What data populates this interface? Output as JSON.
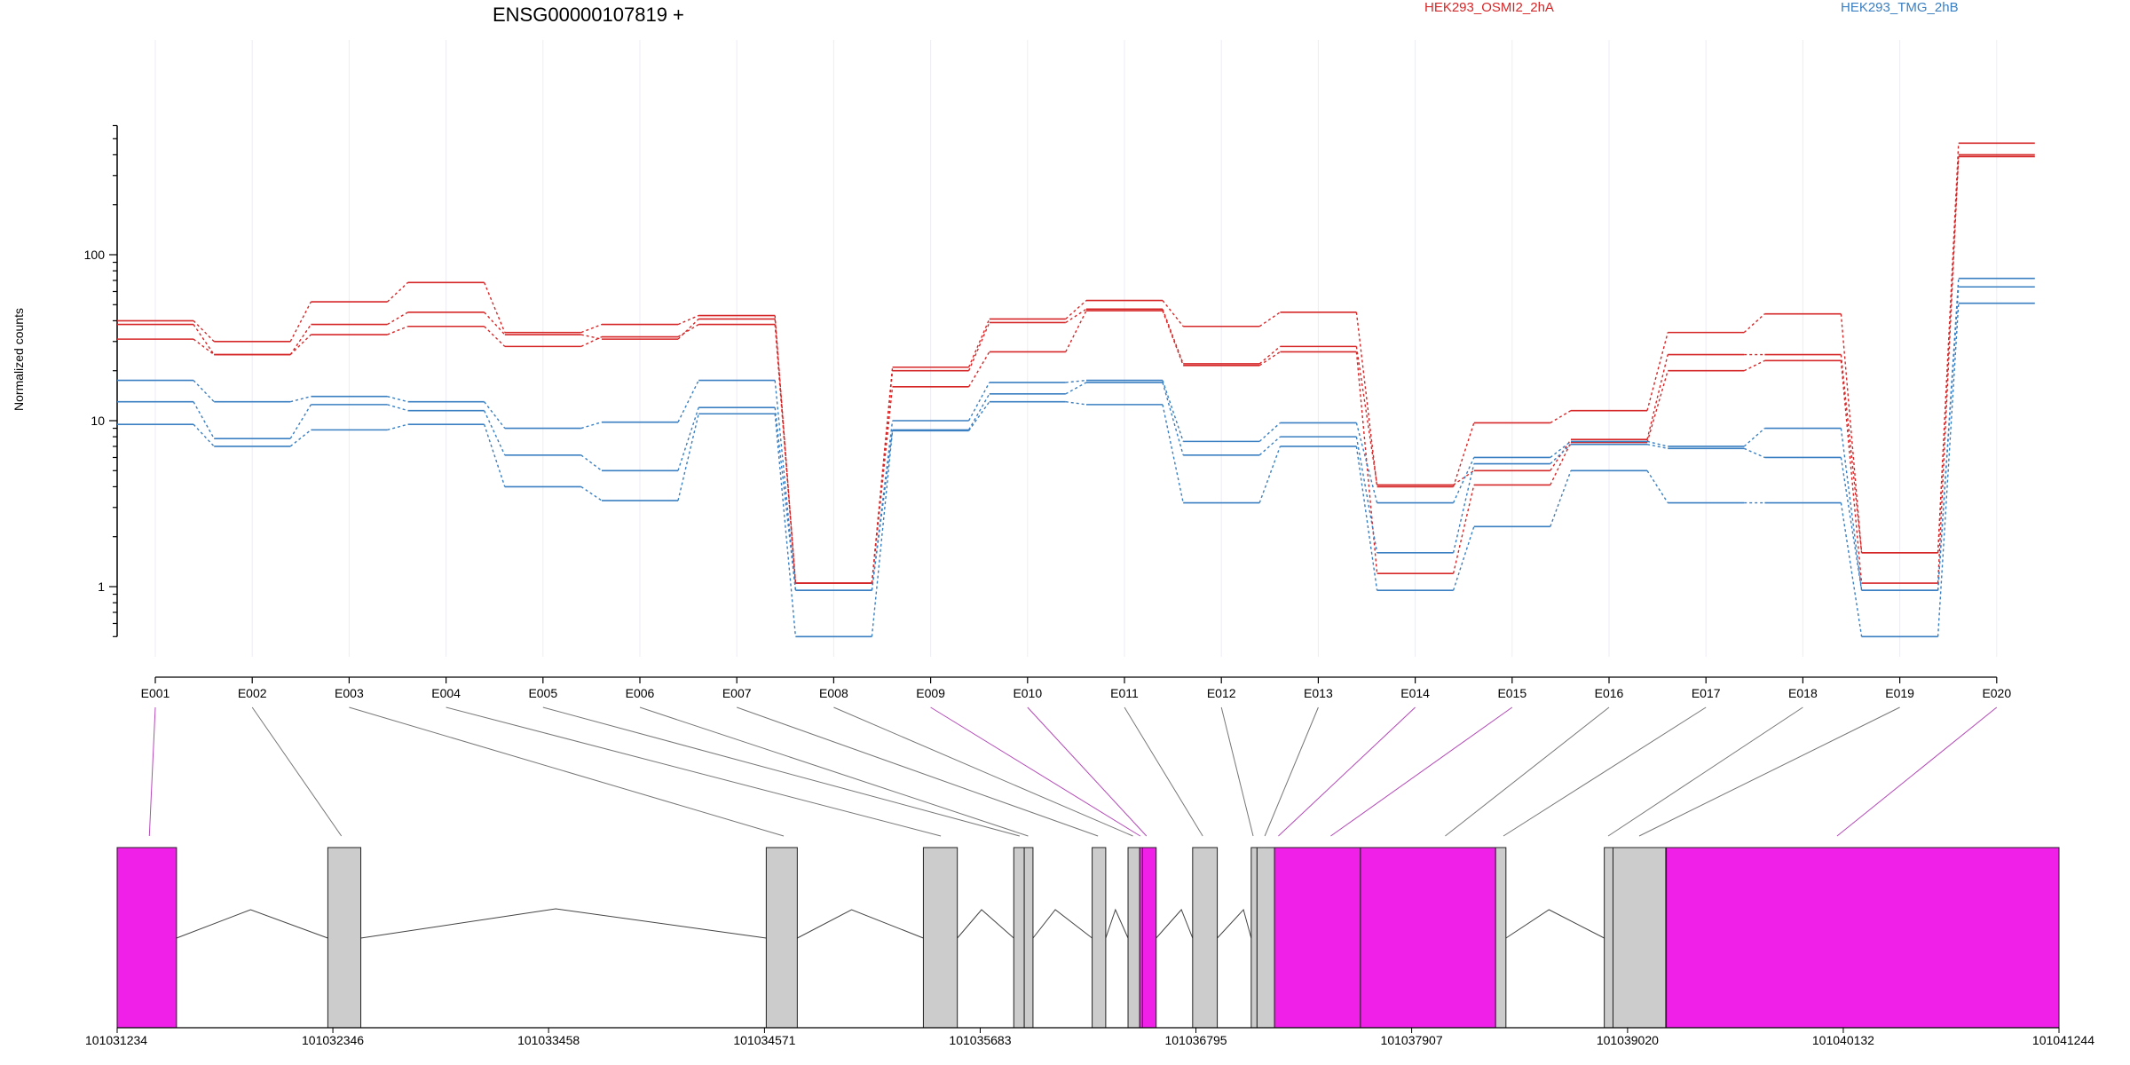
{
  "chart_data": {
    "type": "line",
    "title": "ENSG00000107819 +",
    "ylabel": "Normalized counts",
    "xlabel": "",
    "yscale": "log",
    "ylim": [
      0.5,
      600
    ],
    "grid": "vertical, light",
    "legend_placement": "top-right",
    "yticks": [
      "1",
      "10",
      "100"
    ],
    "categories": [
      "E001",
      "E002",
      "E003",
      "E004",
      "E005",
      "E006",
      "E007",
      "E008",
      "E009",
      "E010",
      "E011",
      "E012",
      "E013",
      "E014",
      "E015",
      "E016",
      "E017",
      "E018",
      "E019",
      "E020"
    ],
    "colors": {
      "HEK293_OSMI2_2hA": "#d62728",
      "HEK293_TMG_2hB": "#3a7fc1",
      "highlight": "#f020e8",
      "exon_gray": "#cccccc"
    },
    "legend": [
      "HEK293_OSMI2_2hA",
      "HEK293_TMG_2hB"
    ],
    "series": [
      {
        "name": "HEK293_OSMI2_2hA",
        "group": "HEK293_OSMI2_2hA",
        "values": [
          40,
          30,
          52,
          68,
          34,
          38,
          43,
          1.05,
          21,
          41,
          53,
          37,
          45,
          4,
          9.7,
          11.5,
          34,
          44,
          1.6,
          470
        ]
      },
      {
        "group": "HEK293_OSMI2_2hA",
        "values": [
          38,
          25,
          38,
          45,
          33,
          31,
          41,
          1.05,
          20,
          39,
          47,
          22,
          28,
          4.1,
          5,
          7.7,
          25,
          25,
          1.6,
          400
        ]
      },
      {
        "group": "HEK293_OSMI2_2hA",
        "values": [
          31,
          25,
          33,
          37,
          28,
          32,
          38,
          1.05,
          16,
          26,
          46,
          21.5,
          26,
          1.2,
          4.1,
          7.4,
          20,
          23,
          1.05,
          390
        ]
      },
      {
        "group": "HEK293_TMG_2hB",
        "values": [
          17.5,
          13,
          14,
          13,
          9,
          9.8,
          17.5,
          0.95,
          10,
          17,
          17.5,
          7.5,
          9.7,
          3.2,
          6,
          7.5,
          7,
          9,
          0.95,
          72
        ]
      },
      {
        "group": "HEK293_TMG_2hB",
        "values": [
          13,
          7.8,
          12.5,
          11.5,
          6.2,
          5,
          12,
          0.95,
          8.8,
          14.5,
          17,
          6.2,
          8,
          1.6,
          5.5,
          7.2,
          6.8,
          6,
          0.95,
          64
        ]
      },
      {
        "group": "HEK293_TMG_2hB",
        "values": [
          9.5,
          7,
          8.8,
          9.5,
          4,
          3.3,
          11,
          0.5,
          8.7,
          13,
          12.5,
          3.2,
          7,
          0.95,
          2.3,
          5,
          3.2,
          3.2,
          0.5,
          51
        ]
      }
    ],
    "genomic_axis": {
      "tick_labels": [
        "101031234",
        "101032346",
        "101033458",
        "101034571",
        "101035683",
        "101036795",
        "101037907",
        "101039020",
        "101040132",
        "101041244"
      ],
      "exons": [
        {
          "id": "E001",
          "start": 101031234,
          "end": 101031540,
          "highlight": true
        },
        {
          "id": "E002",
          "start": 101032320,
          "end": 101032490,
          "highlight": false
        },
        {
          "id": "E003",
          "start": 101034580,
          "end": 101034740,
          "highlight": false
        },
        {
          "id": "E004",
          "start": 101035390,
          "end": 101035565,
          "highlight": false
        },
        {
          "id": "E005",
          "start": 101035856,
          "end": 101035910,
          "highlight": false
        },
        {
          "id": "E006",
          "start": 101035910,
          "end": 101035955,
          "highlight": false
        },
        {
          "id": "E007",
          "start": 101036260,
          "end": 101036330,
          "highlight": false
        },
        {
          "id": "E008",
          "start": 101036445,
          "end": 101036505,
          "highlight": false
        },
        {
          "id": "E009",
          "start": 101036505,
          "end": 101036520,
          "highlight": true
        },
        {
          "id": "E010",
          "start": 101036520,
          "end": 101036590,
          "highlight": true
        },
        {
          "id": "E011",
          "start": 101036778,
          "end": 101036905,
          "highlight": false
        },
        {
          "id": "E012",
          "start": 101037080,
          "end": 101037110,
          "highlight": false
        },
        {
          "id": "E013",
          "start": 101037110,
          "end": 101037200,
          "highlight": false
        },
        {
          "id": "E014",
          "start": 101037200,
          "end": 101037643,
          "highlight": true
        },
        {
          "id": "E015",
          "start": 101037643,
          "end": 101038340,
          "highlight": true
        },
        {
          "id": "E016",
          "start": 101038340,
          "end": 101038393,
          "highlight": false
        },
        {
          "id": "E017",
          "start": 101038900,
          "end": 101038945,
          "highlight": false
        },
        {
          "id": "E018",
          "start": 101038945,
          "end": 101039217,
          "highlight": false
        },
        {
          "id": "E019",
          "start": 101039217,
          "end": 101039220,
          "highlight": false
        },
        {
          "id": "E020",
          "start": 101039220,
          "end": 101041244,
          "highlight": true
        }
      ],
      "connector_anchor": [
        101031400,
        101032390,
        101034670,
        101035480,
        101035886,
        101035930,
        101036290,
        101036470,
        101036508,
        101036540,
        101036830,
        101037090,
        101037150,
        101037220,
        101037490,
        101038080,
        101038380,
        101038920,
        101039080,
        101040100
      ],
      "junction_peaks": [
        101031922,
        101033495,
        101035020,
        101035690,
        101036070,
        101036380,
        101036720,
        101037040,
        101038615
      ]
    }
  }
}
